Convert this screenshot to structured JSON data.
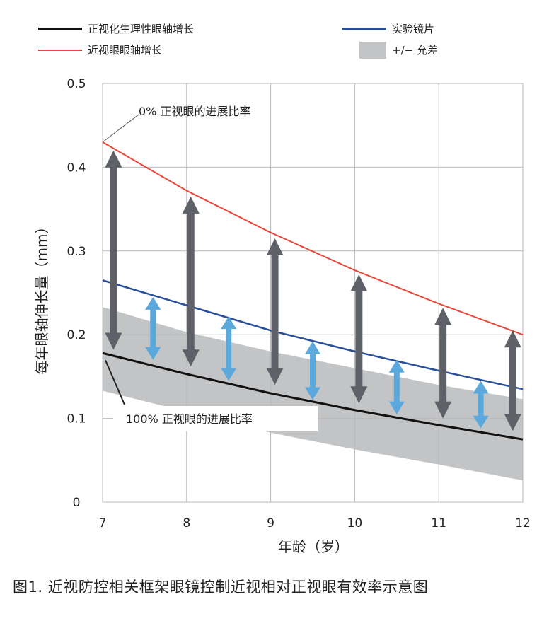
{
  "chart_data": {
    "type": "line",
    "x": [
      7,
      8,
      9,
      10,
      11,
      12
    ],
    "xlim": [
      7,
      12
    ],
    "ylim": [
      0,
      0.5
    ],
    "x_ticks": [
      "7",
      "8",
      "9",
      "10",
      "11",
      "12"
    ],
    "y_ticks": [
      "0",
      "0.1",
      "0.2",
      "0.3",
      "0.4",
      "0.5"
    ],
    "xlabel": "年龄（岁）",
    "ylabel": "每年眼轴伸长量（mm）",
    "grid": true,
    "legend_position": "top",
    "series": [
      {
        "name": "正视化生理性眼轴增长",
        "color": "#111111",
        "values": [
          0.178,
          0.153,
          0.13,
          0.11,
          0.092,
          0.075
        ]
      },
      {
        "name": "近视眼眼轴增长",
        "color": "#e8473a",
        "values": [
          0.43,
          0.372,
          0.322,
          0.277,
          0.237,
          0.2
        ]
      },
      {
        "name": "实验镜片",
        "color": "#2a4f9a",
        "values": [
          0.265,
          0.235,
          0.205,
          0.18,
          0.157,
          0.135
        ]
      }
    ],
    "band": {
      "name": "+/− 允差",
      "color": "#c3c4c6",
      "upper": [
        0.233,
        0.203,
        0.18,
        0.16,
        0.14,
        0.123
      ],
      "lower": [
        0.133,
        0.108,
        0.083,
        0.063,
        0.045,
        0.026
      ]
    },
    "dark_arrows": [
      {
        "x": 7.13,
        "from": 0.182,
        "to": 0.42
      },
      {
        "x": 8.05,
        "from": 0.162,
        "to": 0.365
      },
      {
        "x": 9.05,
        "from": 0.14,
        "to": 0.315
      },
      {
        "x": 10.05,
        "from": 0.118,
        "to": 0.272
      },
      {
        "x": 11.05,
        "from": 0.1,
        "to": 0.232
      },
      {
        "x": 11.88,
        "from": 0.085,
        "to": 0.205
      }
    ],
    "light_arrows": [
      {
        "x": 7.6,
        "from": 0.17,
        "to": 0.245
      },
      {
        "x": 8.5,
        "from": 0.145,
        "to": 0.222
      },
      {
        "x": 9.5,
        "from": 0.122,
        "to": 0.192
      },
      {
        "x": 10.5,
        "from": 0.105,
        "to": 0.17
      },
      {
        "x": 11.5,
        "from": 0.088,
        "to": 0.145
      }
    ],
    "annotations": {
      "top": "0% 正视眼的进展比率",
      "bottom": "100% 正视眼的进展比率"
    }
  },
  "caption": "图1.   近视防控相关框架眼镜控制近视相对正视眼有效率示意图"
}
